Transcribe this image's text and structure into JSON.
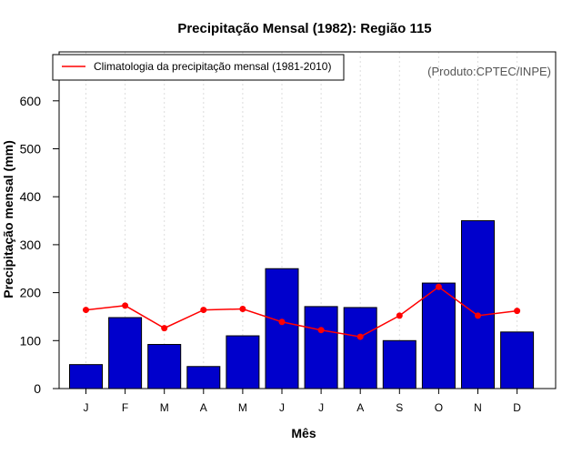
{
  "colors": {
    "bar_fill": "#0000cc",
    "bar_stroke": "#000000",
    "line": "#ff0000",
    "grid": "#dddddd",
    "credit": "#555555"
  },
  "chart_data": {
    "type": "bar",
    "title": "Precipitação Mensal (1982): Região 115",
    "xlabel": "Mês",
    "ylabel": "Precipitação mensal (mm)",
    "categories": [
      "J",
      "F",
      "M",
      "A",
      "M",
      "J",
      "J",
      "A",
      "S",
      "O",
      "N",
      "D"
    ],
    "ylim": [
      0,
      700
    ],
    "yticks": [
      0,
      100,
      200,
      300,
      400,
      500,
      600
    ],
    "grid": "vertical-dotted",
    "series": [
      {
        "name": "Precipitação mensal 1982",
        "type": "bar",
        "values": [
          50,
          148,
          92,
          46,
          110,
          250,
          171,
          169,
          100,
          220,
          350,
          118
        ]
      },
      {
        "name": "Climatologia da precipitação mensal (1981-2010)",
        "type": "line",
        "values": [
          164,
          173,
          126,
          164,
          166,
          139,
          122,
          108,
          152,
          212,
          152,
          162
        ]
      }
    ],
    "legend": {
      "position": "top-left",
      "label": "Climatologia da precipitação mensal (1981-2010)"
    },
    "annotation": "(Produto:CPTEC/INPE)"
  }
}
